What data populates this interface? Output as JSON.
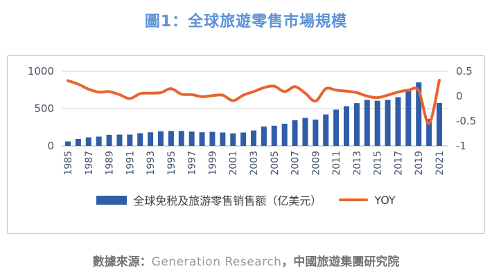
{
  "title": "圖1：全球旅遊零售市場規模",
  "colors": {
    "title": "#5b92d5",
    "bar": "#2f5da8",
    "line": "#e8642d",
    "grid": "#d9d9d9",
    "axis_line": "#bfbfbf",
    "axis_text": "#44546a",
    "legend_text": "#3f3f3f",
    "source_cjk": "#737373",
    "source_en": "#9a9a9a",
    "panel_border": "#c9c9c9"
  },
  "legend": {
    "bar_label": "全球免税及旅游零售销售额（亿美元）",
    "line_label": "YOY"
  },
  "source": {
    "prefix": "數據來源：",
    "en": "Generation Research",
    "suffix": "，中國旅遊集團研究院"
  },
  "chart_data": {
    "type": "bar",
    "title": "圖1：全球旅遊零售市場規模",
    "categories": [
      1985,
      1986,
      1987,
      1988,
      1989,
      1990,
      1991,
      1992,
      1993,
      1994,
      1995,
      1996,
      1997,
      1998,
      1999,
      2000,
      2001,
      2002,
      2003,
      2004,
      2005,
      2006,
      2007,
      2008,
      2009,
      2010,
      2011,
      2012,
      2013,
      2014,
      2015,
      2016,
      2017,
      2018,
      2019,
      2020,
      2021
    ],
    "x_label_step": 2,
    "series": [
      {
        "name": "全球免税及旅游零售销售额（亿美元）",
        "type": "bar",
        "axis": "left",
        "values": [
          60,
          93,
          115,
          125,
          149,
          152,
          152,
          170,
          183,
          195,
          200,
          200,
          192,
          183,
          189,
          180,
          167,
          180,
          207,
          260,
          270,
          297,
          344,
          375,
          353,
          421,
          486,
          532,
          573,
          616,
          605,
          616,
          653,
          734,
          850,
          360,
          575
        ]
      },
      {
        "name": "YOY",
        "type": "line",
        "axis": "right",
        "values": [
          0.31,
          0.24,
          0.14,
          0.08,
          0.09,
          0.03,
          -0.05,
          0.05,
          0.06,
          0.07,
          0.15,
          0.04,
          0.03,
          -0.01,
          0.01,
          0.02,
          -0.09,
          0.02,
          0.09,
          0.17,
          0.2,
          0.09,
          0.19,
          0.06,
          -0.1,
          0.15,
          0.12,
          0.1,
          0.07,
          0.0,
          -0.03,
          0.02,
          0.08,
          0.12,
          0.11,
          -0.55,
          0.32
        ]
      }
    ],
    "left_axis": {
      "range": [
        0,
        1000
      ],
      "ticks": [
        0,
        500,
        1000
      ],
      "tick_labels": [
        "0",
        "500",
        "1000"
      ],
      "gridlines": true
    },
    "right_axis": {
      "range": [
        -1,
        0.5
      ],
      "ticks": [
        -1,
        -0.5,
        0,
        0.5
      ],
      "tick_labels": [
        "-1",
        "-0.5",
        "0",
        "0.5"
      ],
      "gridlines": false
    },
    "legend_position": "bottom"
  }
}
